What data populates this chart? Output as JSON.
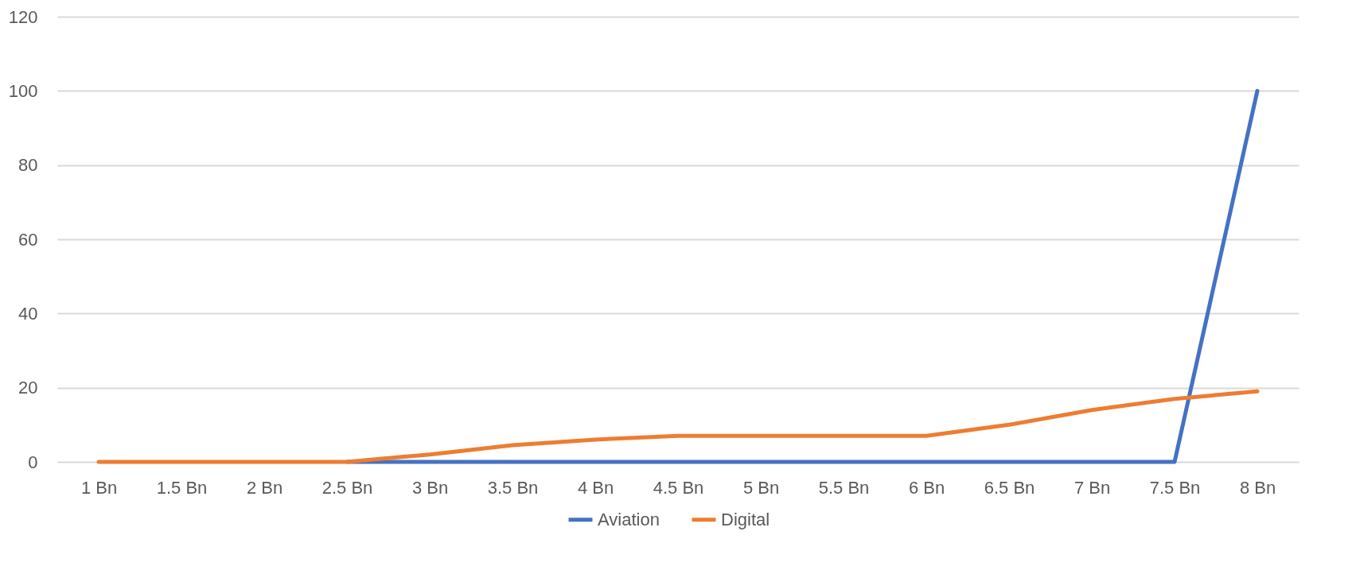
{
  "chart_data": {
    "type": "line",
    "categories": [
      "1 Bn",
      "1.5 Bn",
      "2 Bn",
      "2.5 Bn",
      "3 Bn",
      "3.5 Bn",
      "4 Bn",
      "4.5 Bn",
      "5 Bn",
      "5.5 Bn",
      "6 Bn",
      "6.5 Bn",
      "7 Bn",
      "7.5 Bn",
      "8 Bn"
    ],
    "series": [
      {
        "name": "Aviation",
        "color": "#4472c4",
        "values": [
          null,
          null,
          null,
          0,
          0,
          0,
          0,
          0,
          0,
          0,
          0,
          0,
          0,
          0,
          100
        ]
      },
      {
        "name": "Digital",
        "color": "#ed7d31",
        "values": [
          0,
          0,
          0,
          0,
          2,
          4.5,
          6,
          7,
          7,
          7,
          7,
          10,
          14,
          17,
          19
        ]
      }
    ],
    "ylim": [
      0,
      120
    ],
    "yticks": [
      0,
      20,
      40,
      60,
      80,
      100,
      120
    ],
    "grid": "y",
    "legend": "bottom",
    "marker": "none",
    "line_style": "solid"
  }
}
